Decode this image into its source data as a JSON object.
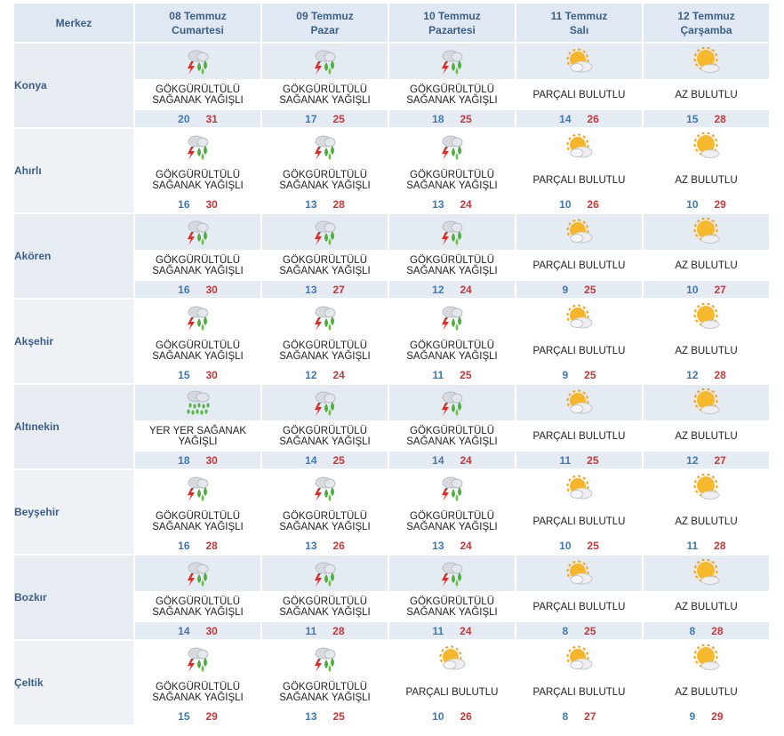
{
  "header": {
    "region": "Merkez",
    "days": [
      {
        "date": "08 Temmuz",
        "weekday": "Cumartesi"
      },
      {
        "date": "09 Temmuz",
        "weekday": "Pazar"
      },
      {
        "date": "10 Temmuz",
        "weekday": "Pazartesi"
      },
      {
        "date": "11 Temmuz",
        "weekday": "Salı"
      },
      {
        "date": "12 Temmuz",
        "weekday": "Çarşamba"
      }
    ]
  },
  "rows": [
    {
      "city": "Konya",
      "days": [
        {
          "icon": "thunder-rain-icon",
          "cond": "GÖKGÜRÜLTÜLÜ SAĞANAK YAĞIŞLI",
          "min": "20",
          "max": "31"
        },
        {
          "icon": "thunder-rain-icon",
          "cond": "GÖKGÜRÜLTÜLÜ SAĞANAK YAĞIŞLI",
          "min": "17",
          "max": "25"
        },
        {
          "icon": "thunder-rain-icon",
          "cond": "GÖKGÜRÜLTÜLÜ SAĞANAK YAĞIŞLI",
          "min": "18",
          "max": "25"
        },
        {
          "icon": "partly-cloudy-icon",
          "cond": "PARÇALI BULUTLU",
          "min": "14",
          "max": "26"
        },
        {
          "icon": "mostly-sunny-icon",
          "cond": "AZ BULUTLU",
          "min": "15",
          "max": "28"
        }
      ]
    },
    {
      "city": "Ahırlı",
      "days": [
        {
          "icon": "thunder-rain-icon",
          "cond": "GÖKGÜRÜLTÜLÜ SAĞANAK YAĞIŞLI",
          "min": "16",
          "max": "30"
        },
        {
          "icon": "thunder-rain-icon",
          "cond": "GÖKGÜRÜLTÜLÜ SAĞANAK YAĞIŞLI",
          "min": "13",
          "max": "28"
        },
        {
          "icon": "thunder-rain-icon",
          "cond": "GÖKGÜRÜLTÜLÜ SAĞANAK YAĞIŞLI",
          "min": "13",
          "max": "24"
        },
        {
          "icon": "partly-cloudy-icon",
          "cond": "PARÇALI BULUTLU",
          "min": "10",
          "max": "26"
        },
        {
          "icon": "mostly-sunny-icon",
          "cond": "AZ BULUTLU",
          "min": "10",
          "max": "29"
        }
      ]
    },
    {
      "city": "Akören",
      "days": [
        {
          "icon": "thunder-rain-icon",
          "cond": "GÖKGÜRÜLTÜLÜ SAĞANAK YAĞIŞLI",
          "min": "16",
          "max": "30"
        },
        {
          "icon": "thunder-rain-icon",
          "cond": "GÖKGÜRÜLTÜLÜ SAĞANAK YAĞIŞLI",
          "min": "13",
          "max": "27"
        },
        {
          "icon": "thunder-rain-icon",
          "cond": "GÖKGÜRÜLTÜLÜ SAĞANAK YAĞIŞLI",
          "min": "12",
          "max": "24"
        },
        {
          "icon": "partly-cloudy-icon",
          "cond": "PARÇALI BULUTLU",
          "min": "9",
          "max": "25"
        },
        {
          "icon": "mostly-sunny-icon",
          "cond": "AZ BULUTLU",
          "min": "10",
          "max": "27"
        }
      ]
    },
    {
      "city": "Akşehir",
      "days": [
        {
          "icon": "thunder-rain-icon",
          "cond": "GÖKGÜRÜLTÜLÜ SAĞANAK YAĞIŞLI",
          "min": "15",
          "max": "30"
        },
        {
          "icon": "thunder-rain-icon",
          "cond": "GÖKGÜRÜLTÜLÜ SAĞANAK YAĞIŞLI",
          "min": "12",
          "max": "24"
        },
        {
          "icon": "thunder-rain-icon",
          "cond": "GÖKGÜRÜLTÜLÜ SAĞANAK YAĞIŞLI",
          "min": "11",
          "max": "25"
        },
        {
          "icon": "partly-cloudy-icon",
          "cond": "PARÇALI BULUTLU",
          "min": "9",
          "max": "25"
        },
        {
          "icon": "mostly-sunny-icon",
          "cond": "AZ BULUTLU",
          "min": "12",
          "max": "28"
        }
      ]
    },
    {
      "city": "Altınekin",
      "days": [
        {
          "icon": "showers-icon",
          "cond": "YER YER SAĞANAK YAĞIŞLI",
          "min": "18",
          "max": "30"
        },
        {
          "icon": "thunder-rain-icon",
          "cond": "GÖKGÜRÜLTÜLÜ SAĞANAK YAĞIŞLI",
          "min": "14",
          "max": "25"
        },
        {
          "icon": "thunder-rain-icon",
          "cond": "GÖKGÜRÜLTÜLÜ SAĞANAK YAĞIŞLI",
          "min": "14",
          "max": "24"
        },
        {
          "icon": "partly-cloudy-icon",
          "cond": "PARÇALI BULUTLU",
          "min": "11",
          "max": "25"
        },
        {
          "icon": "mostly-sunny-icon",
          "cond": "AZ BULUTLU",
          "min": "12",
          "max": "27"
        }
      ]
    },
    {
      "city": "Beyşehir",
      "days": [
        {
          "icon": "thunder-rain-icon",
          "cond": "GÖKGÜRÜLTÜLÜ SAĞANAK YAĞIŞLI",
          "min": "16",
          "max": "28"
        },
        {
          "icon": "thunder-rain-icon",
          "cond": "GÖKGÜRÜLTÜLÜ SAĞANAK YAĞIŞLI",
          "min": "13",
          "max": "26"
        },
        {
          "icon": "thunder-rain-icon",
          "cond": "GÖKGÜRÜLTÜLÜ SAĞANAK YAĞIŞLI",
          "min": "13",
          "max": "24"
        },
        {
          "icon": "partly-cloudy-icon",
          "cond": "PARÇALI BULUTLU",
          "min": "10",
          "max": "25"
        },
        {
          "icon": "mostly-sunny-icon",
          "cond": "AZ BULUTLU",
          "min": "11",
          "max": "28"
        }
      ]
    },
    {
      "city": "Bozkır",
      "days": [
        {
          "icon": "thunder-rain-icon",
          "cond": "GÖKGÜRÜLTÜLÜ SAĞANAK YAĞIŞLI",
          "min": "14",
          "max": "30"
        },
        {
          "icon": "thunder-rain-icon",
          "cond": "GÖKGÜRÜLTÜLÜ SAĞANAK YAĞIŞLI",
          "min": "11",
          "max": "28"
        },
        {
          "icon": "thunder-rain-icon",
          "cond": "GÖKGÜRÜLTÜLÜ SAĞANAK YAĞIŞLI",
          "min": "11",
          "max": "24"
        },
        {
          "icon": "partly-cloudy-icon",
          "cond": "PARÇALI BULUTLU",
          "min": "8",
          "max": "25"
        },
        {
          "icon": "mostly-sunny-icon",
          "cond": "AZ BULUTLU",
          "min": "8",
          "max": "28"
        }
      ]
    },
    {
      "city": "Çeltik",
      "days": [
        {
          "icon": "thunder-rain-icon",
          "cond": "GÖKGÜRÜLTÜLÜ SAĞANAK YAĞIŞLI",
          "min": "15",
          "max": "29"
        },
        {
          "icon": "thunder-rain-icon",
          "cond": "GÖKGÜRÜLTÜLÜ SAĞANAK YAĞIŞLI",
          "min": "13",
          "max": "25"
        },
        {
          "icon": "partly-cloudy-icon",
          "cond": "PARÇALI BULUTLU",
          "min": "10",
          "max": "26"
        },
        {
          "icon": "partly-cloudy-icon",
          "cond": "PARÇALI BULUTLU",
          "min": "8",
          "max": "27"
        },
        {
          "icon": "mostly-sunny-icon",
          "cond": "AZ BULUTLU",
          "min": "9",
          "max": "29"
        }
      ]
    }
  ],
  "colors": {
    "header_bg": "#dfe8f3",
    "header_text": "#3d5f86",
    "band_bg": "#e5ebf2",
    "min_temp": "#3f78b8",
    "max_temp": "#c8383a"
  }
}
